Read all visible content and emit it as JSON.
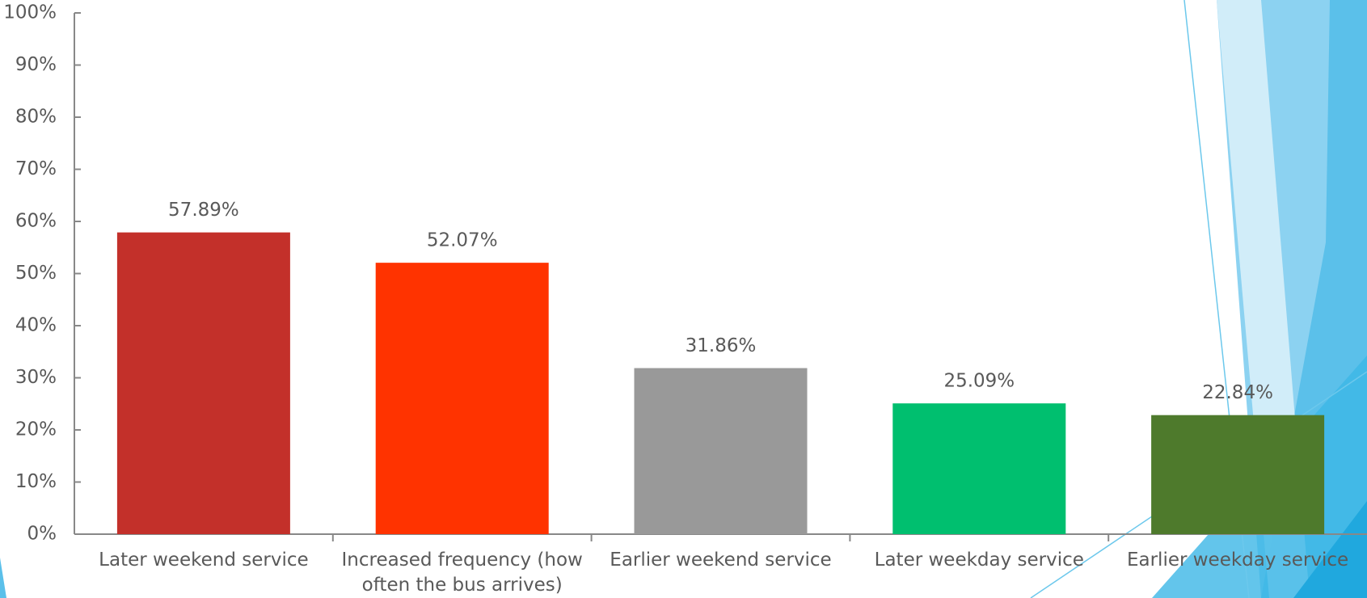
{
  "chart_data": {
    "type": "bar",
    "categories": [
      "Later weekend service",
      "Increased frequency (how often the bus arrives)",
      "Earlier weekend service",
      "Later weekday service",
      "Earlier weekday service"
    ],
    "values": [
      57.89,
      52.07,
      31.86,
      25.09,
      22.84
    ],
    "value_labels": [
      "57.89%",
      "52.07%",
      "31.86%",
      "25.09%",
      "22.84%"
    ],
    "colors": [
      "#c3302a",
      "#ff3300",
      "#999999",
      "#00bf6f",
      "#4e7a2c"
    ],
    "ylim": [
      0,
      100
    ],
    "yticks": [
      {
        "value": 0,
        "label": "0%"
      },
      {
        "value": 10,
        "label": "10%"
      },
      {
        "value": 20,
        "label": "20%"
      },
      {
        "value": 30,
        "label": "30%"
      },
      {
        "value": 40,
        "label": "40%"
      },
      {
        "value": 50,
        "label": "50%"
      },
      {
        "value": 60,
        "label": "60%"
      },
      {
        "value": 70,
        "label": "70%"
      },
      {
        "value": 80,
        "label": "80%"
      },
      {
        "value": 90,
        "label": "90%"
      },
      {
        "value": 100,
        "label": "100%"
      }
    ],
    "grid": false
  }
}
